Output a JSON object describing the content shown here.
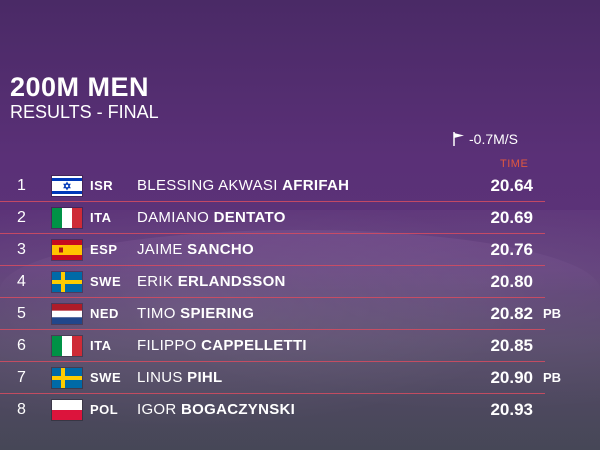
{
  "header": {
    "title": "200M MEN",
    "subtitle": "RESULTS - FINAL",
    "wind": "-0.7M/S",
    "time_label": "TIME"
  },
  "results": [
    {
      "rank": "1",
      "flag": "isr-flag-icon",
      "nat": "ISR",
      "first": "BLESSING AKWASI",
      "last": "AFRIFAH",
      "time": "20.64",
      "note": ""
    },
    {
      "rank": "2",
      "flag": "ita-flag-icon",
      "nat": "ITA",
      "first": "DAMIANO",
      "last": "DENTATO",
      "time": "20.69",
      "note": ""
    },
    {
      "rank": "3",
      "flag": "esp-flag-icon",
      "nat": "ESP",
      "first": "JAIME",
      "last": "SANCHO",
      "time": "20.76",
      "note": ""
    },
    {
      "rank": "4",
      "flag": "swe-flag-icon",
      "nat": "SWE",
      "first": "ERIK",
      "last": "ERLANDSSON",
      "time": "20.80",
      "note": ""
    },
    {
      "rank": "5",
      "flag": "ned-flag-icon",
      "nat": "NED",
      "first": "TIMO",
      "last": "SPIERING",
      "time": "20.82",
      "note": "PB"
    },
    {
      "rank": "6",
      "flag": "ita-flag-icon",
      "nat": "ITA",
      "first": "FILIPPO",
      "last": "CAPPELLETTI",
      "time": "20.85",
      "note": ""
    },
    {
      "rank": "7",
      "flag": "swe-flag-icon",
      "nat": "SWE",
      "first": "LINUS",
      "last": "PIHL",
      "time": "20.90",
      "note": "PB"
    },
    {
      "rank": "8",
      "flag": "pol-flag-icon",
      "nat": "POL",
      "first": "IGOR",
      "last": "BOGACZYNSKI",
      "time": "20.93",
      "note": ""
    }
  ],
  "colors": {
    "background": "#5a3077",
    "divider": "#d64c60",
    "time_label": "#e0573f"
  }
}
